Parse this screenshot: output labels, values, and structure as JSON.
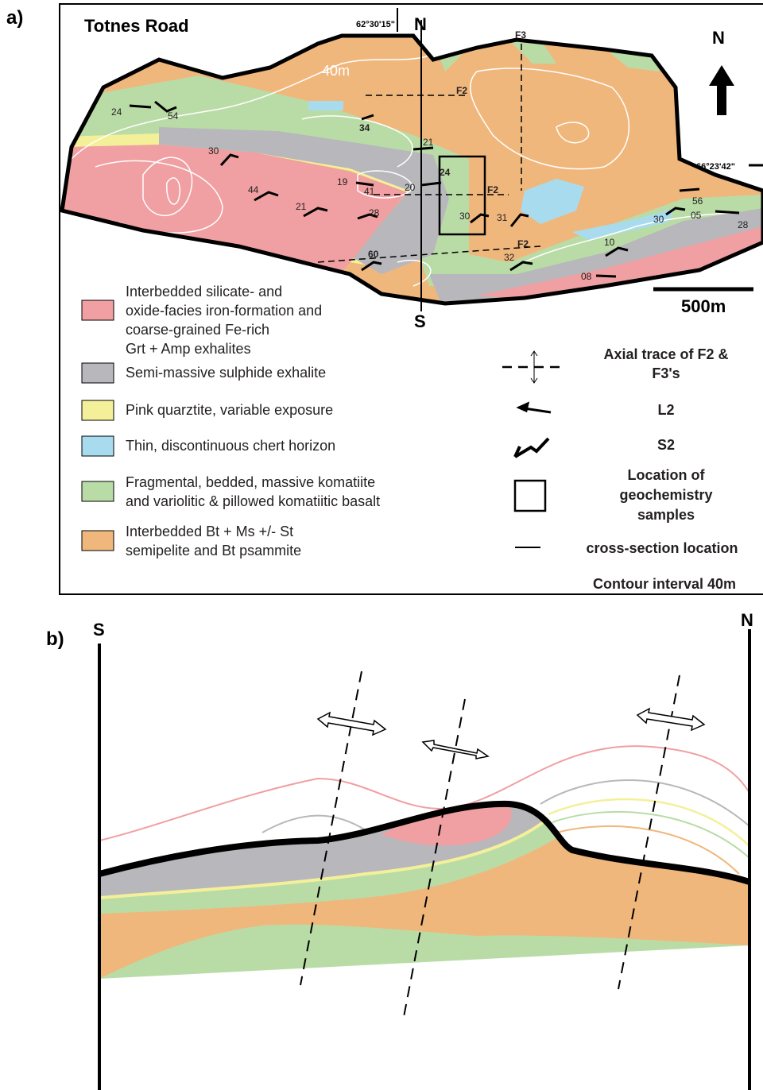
{
  "panel_a": {
    "label": "a)",
    "title": "Totnes Road",
    "coord_top": "62°30'15\"",
    "coord_right": "66°23'42\"",
    "section_north": "N",
    "section_south": "S",
    "north_arrow": "N",
    "contour_label": "40m",
    "fold_labels": [
      "F2",
      "F3",
      "F2",
      "F2"
    ],
    "measurements": [
      "24",
      "54",
      "34",
      "30",
      "19",
      "41",
      "20",
      "24",
      "21",
      "44",
      "21",
      "28",
      "30",
      "31",
      "60",
      "32",
      "10",
      "08",
      "56",
      "30",
      "05",
      "28"
    ],
    "scale_bar": "500m",
    "legend": [
      {
        "lines": [
          "Interbedded  silicate- and",
          "oxide-facies iron-formation and",
          "coarse-grained Fe-rich",
          "Grt + Amp exhalites"
        ]
      },
      {
        "lines": [
          "Semi-massive sulphide exhalite"
        ]
      },
      {
        "lines": [
          "Pink quarztite, variable exposure"
        ]
      },
      {
        "lines": [
          "Thin, discontinuous chert horizon"
        ]
      },
      {
        "lines": [
          "Fragmental, bedded, massive komatiite",
          "and variolitic & pillowed komatiitic basalt"
        ]
      },
      {
        "lines": [
          "Interbedded Bt + Ms +/- St",
          "semipelite and Bt psammite"
        ]
      }
    ],
    "symbols": [
      {
        "lines": [
          "Axial trace of F2 &",
          "F3's"
        ]
      },
      {
        "lines": [
          "L2"
        ]
      },
      {
        "lines": [
          "S2"
        ]
      },
      {
        "lines": [
          "Location of",
          "geochemistry",
          "samples"
        ]
      },
      {
        "lines": [
          "cross-section location"
        ]
      }
    ],
    "contour_interval": "Contour interval 40m"
  },
  "panel_b": {
    "label": "b)",
    "south": "S",
    "north": "N"
  }
}
